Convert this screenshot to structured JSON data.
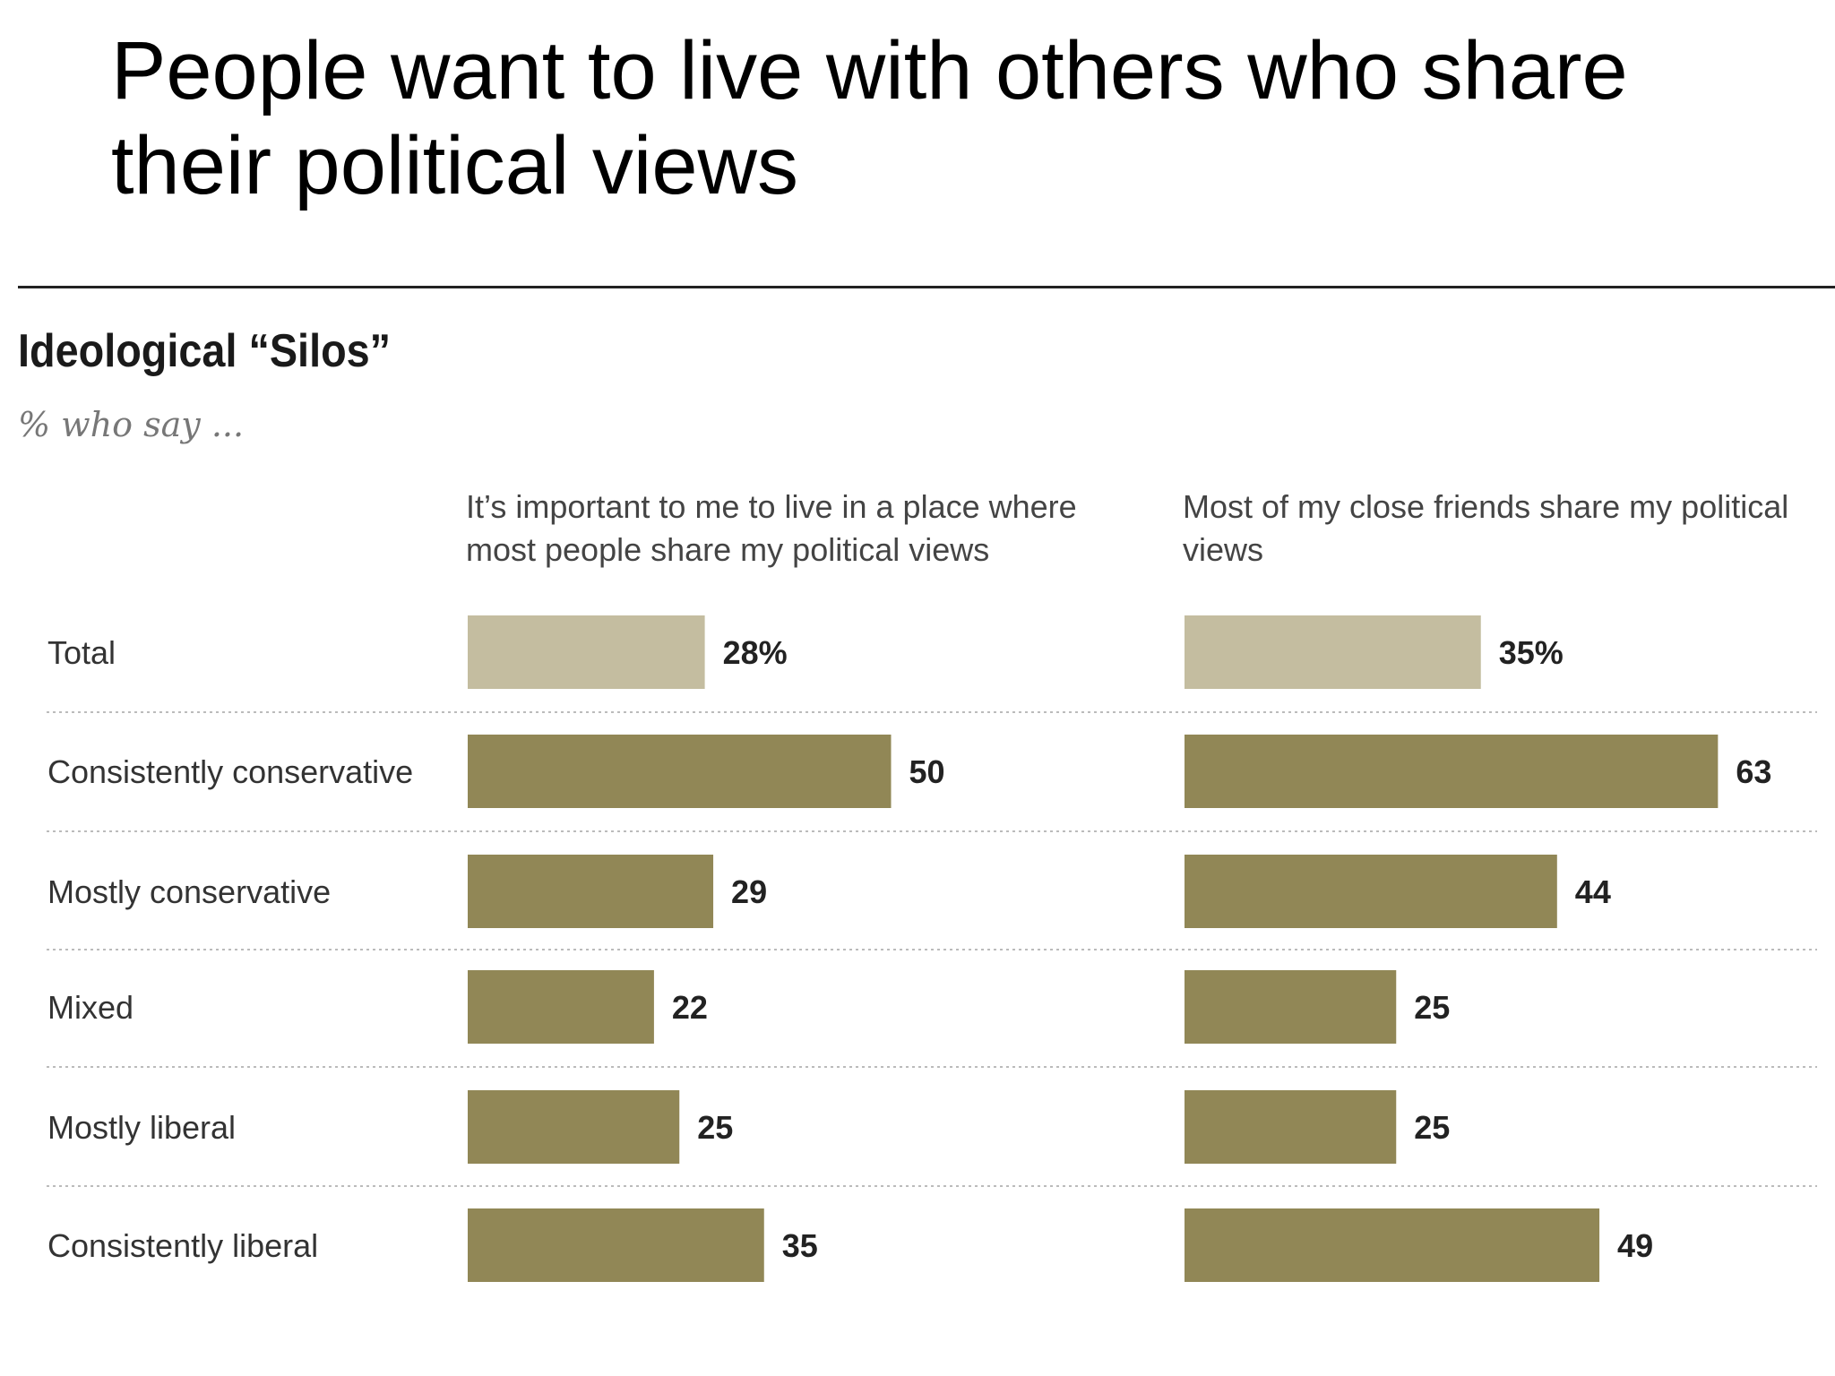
{
  "slide": {
    "title": "People want to live with others who share their political views"
  },
  "chart_data": {
    "type": "bar",
    "orientation": "horizontal",
    "title": "Ideological “Silos”",
    "subtitle": "% who say ...",
    "categories": [
      "Total",
      "Consistently conservative",
      "Mostly conservative",
      "Mixed",
      "Mostly liberal",
      "Consistently liberal"
    ],
    "series": [
      {
        "name": "It’s important to me to live in a place where most people share my political views",
        "values": [
          28,
          50,
          29,
          22,
          25,
          35
        ],
        "labels": [
          "28%",
          "50",
          "29",
          "22",
          "25",
          "35"
        ]
      },
      {
        "name": "Most of my close friends share my political views",
        "values": [
          35,
          63,
          44,
          25,
          25,
          49
        ],
        "labels": [
          "35%",
          "63",
          "44",
          "25",
          "25",
          "49"
        ]
      }
    ],
    "colors": {
      "total_bar": "#c4bda0",
      "group_bar": "#918756",
      "separator": "#bbbbbb"
    },
    "grid": false,
    "legend": "column headers"
  }
}
